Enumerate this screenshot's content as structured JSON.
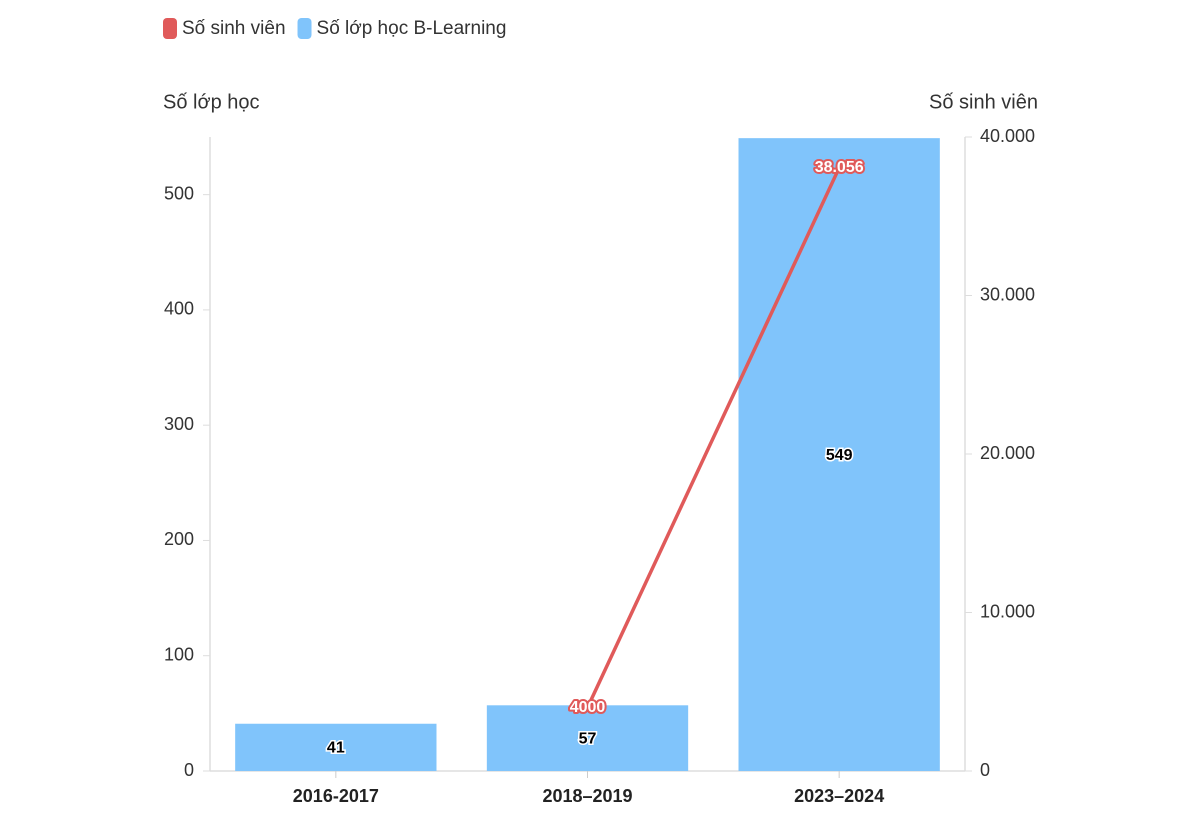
{
  "chart_data": {
    "type": "bar",
    "categories": [
      "2016-2017",
      "2018–2019",
      "2023–2024"
    ],
    "series": [
      {
        "name": "Số sinh viên",
        "type": "line",
        "axis": "y2",
        "color": "#e05a5a",
        "values": [
          null,
          4000,
          38056
        ],
        "value_labels": [
          null,
          "4000",
          "38.056"
        ]
      },
      {
        "name": "Số lớp học B-Learning",
        "type": "bar",
        "color": "#80c4fb",
        "values": [
          41,
          57,
          549
        ]
      }
    ],
    "y_label": "Số lớp học",
    "y2_label": "Số sinh viên",
    "ylim": [
      0,
      550
    ],
    "yticks": [
      0,
      100,
      200,
      300,
      400,
      500
    ],
    "y2lim": [
      0,
      40000
    ],
    "y2ticks": [
      0,
      {
        "value": 10000,
        "label": "10.000"
      },
      {
        "value": 20000,
        "label": "20.000"
      },
      {
        "value": 30000,
        "label": "30.000"
      },
      {
        "value": 40000,
        "label": "40.000"
      }
    ],
    "legend": "top-left",
    "grid": false
  }
}
